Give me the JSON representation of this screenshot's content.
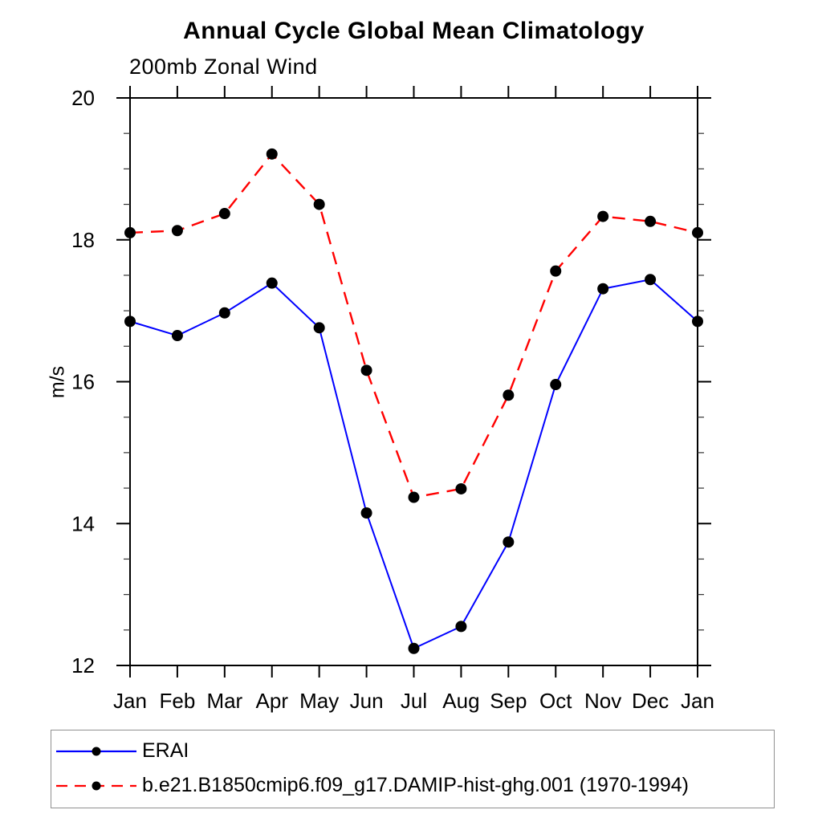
{
  "title": "Annual Cycle Global Mean Climatology",
  "subtitle": "200mb Zonal Wind",
  "ylabel": "m/s",
  "chart_data": {
    "type": "line",
    "categories": [
      "Jan",
      "Feb",
      "Mar",
      "Apr",
      "May",
      "Jun",
      "Jul",
      "Aug",
      "Sep",
      "Oct",
      "Nov",
      "Dec",
      "Jan"
    ],
    "series": [
      {
        "name": "ERAI",
        "color": "#0000ff",
        "line_style": "solid",
        "marker_color": "#000000",
        "values": [
          16.85,
          16.65,
          16.97,
          17.39,
          16.76,
          14.15,
          12.24,
          12.55,
          13.74,
          15.96,
          17.31,
          17.44,
          16.85
        ]
      },
      {
        "name": "b.e21.B1850cmip6.f09_g17.DAMIP-hist-ghg.001 (1970-1994)",
        "color": "#ff0000",
        "line_style": "dashed",
        "marker_color": "#000000",
        "values": [
          18.1,
          18.13,
          18.37,
          19.21,
          18.5,
          16.16,
          14.37,
          14.49,
          15.81,
          17.56,
          18.33,
          18.26,
          18.1
        ]
      }
    ],
    "ylim": [
      12,
      20
    ],
    "yticks": [
      12,
      14,
      16,
      18,
      20
    ],
    "ytick_minor_step": 0.5,
    "xlabel": "",
    "grid": false,
    "legend_position": "bottom",
    "axis_color": "#000000",
    "minor_tick_color": "#333333"
  }
}
